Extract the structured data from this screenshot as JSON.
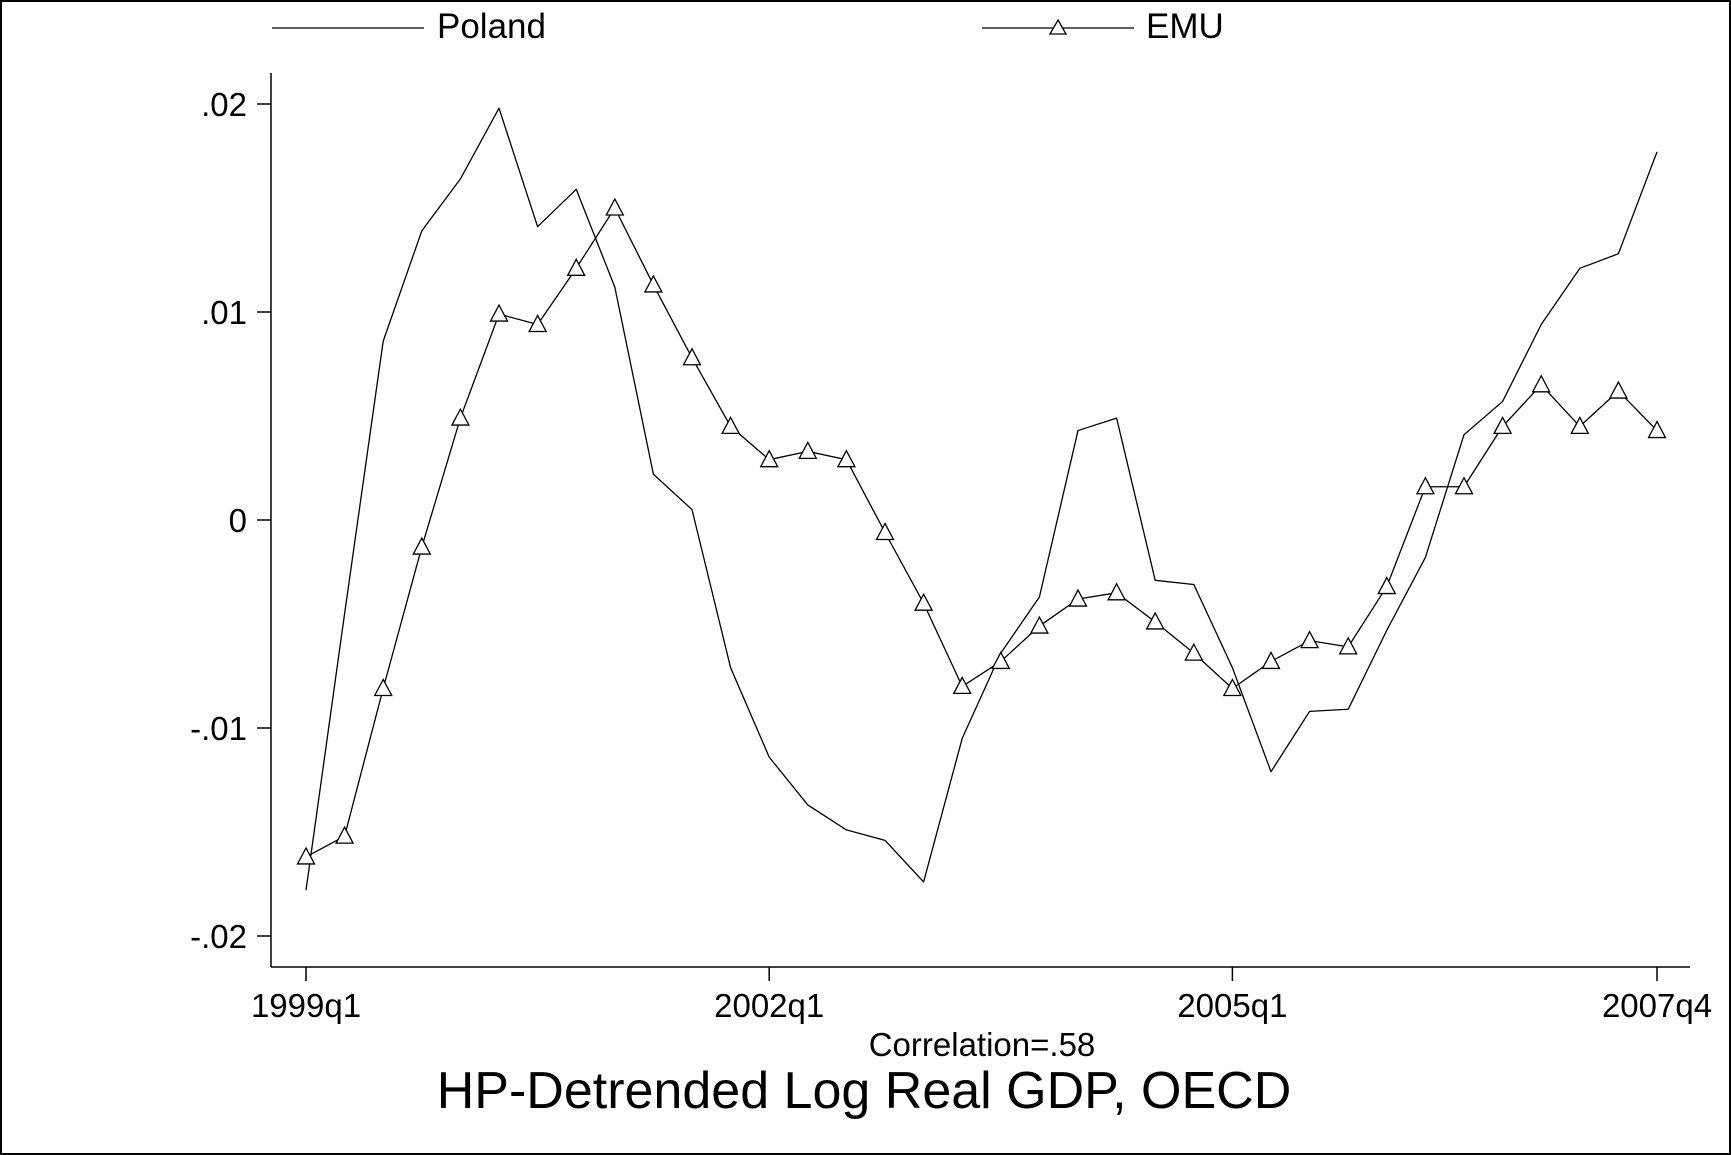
{
  "chart_data": {
    "type": "line",
    "title": "HP-Detrended Log Real GDP, OECD",
    "note": "Correlation=.58",
    "xlabel": "",
    "ylabel": "",
    "x_tick_labels": [
      "1999q1",
      "2002q1",
      "2005q1",
      "2007q4"
    ],
    "x_tick_index": [
      0,
      12,
      24,
      35
    ],
    "y_tick_labels": [
      ".02",
      ".01",
      "0",
      "-.01",
      "-.02"
    ],
    "y_tick_values": [
      0.02,
      0.01,
      0,
      -0.01,
      -0.02
    ],
    "ylim": [
      -0.0215,
      0.0215
    ],
    "grid": false,
    "legend_position": "top",
    "series": [
      {
        "name": "Poland",
        "marker": "none",
        "values": [
          -0.0178,
          -0.0045,
          0.0086,
          0.0139,
          0.0164,
          0.0198,
          0.0141,
          0.0159,
          0.0112,
          0.0022,
          0.0005,
          -0.0071,
          -0.0114,
          -0.0137,
          -0.0149,
          -0.0154,
          -0.0174,
          -0.0105,
          -0.0064,
          -0.0037,
          0.0043,
          0.0049,
          -0.0029,
          -0.0031,
          -0.0071,
          -0.0121,
          -0.0092,
          -0.0091,
          -0.0053,
          -0.0018,
          0.0041,
          0.0057,
          0.0094,
          0.0121,
          0.0128,
          0.0177
        ]
      },
      {
        "name": "EMU",
        "marker": "triangle",
        "values": [
          -0.0162,
          -0.0152,
          -0.0081,
          -0.0013,
          0.0049,
          0.0099,
          0.0094,
          0.0121,
          0.015,
          0.0113,
          0.0078,
          0.0045,
          0.0029,
          0.0033,
          0.0029,
          -0.0006,
          -0.004,
          -0.008,
          -0.0068,
          -0.0051,
          -0.0038,
          -0.0035,
          -0.0049,
          -0.0064,
          -0.0081,
          -0.0068,
          -0.0058,
          -0.0061,
          -0.0032,
          0.0016,
          0.0016,
          0.0045,
          0.0065,
          0.0045,
          0.0062,
          0.0043
        ]
      }
    ]
  }
}
